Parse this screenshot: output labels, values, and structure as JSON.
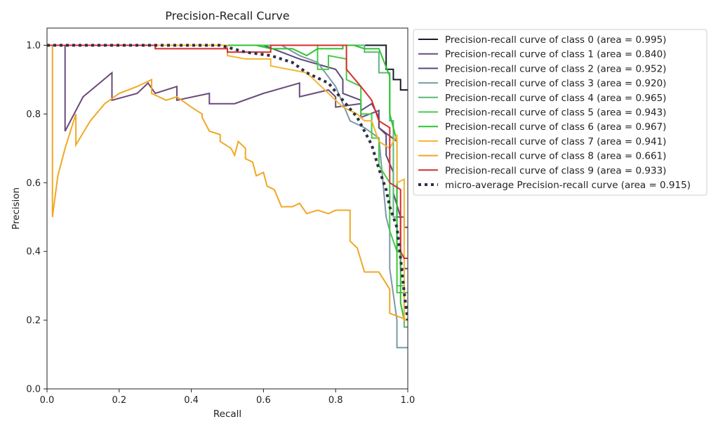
{
  "chart_data": {
    "type": "line",
    "title": "Precision-Recall Curve",
    "xlabel": "Recall",
    "ylabel": "Precision",
    "xlim": [
      0.0,
      1.0
    ],
    "ylim": [
      0.0,
      1.05
    ],
    "x_ticks": [
      "0.0",
      "0.2",
      "0.4",
      "0.6",
      "0.8",
      "1.0"
    ],
    "y_ticks": [
      "0.0",
      "0.2",
      "0.4",
      "0.6",
      "0.8",
      "1.0"
    ],
    "grid": false,
    "legend_position": "outside-right-top",
    "series": [
      {
        "name": "Precision-recall curve of class 0 (area = 0.995)",
        "color": "#1a1a2e",
        "style": "solid",
        "points": [
          [
            0.0,
            1.0
          ],
          [
            0.94,
            1.0
          ],
          [
            0.94,
            0.93
          ],
          [
            0.96,
            0.93
          ],
          [
            0.96,
            0.9
          ],
          [
            0.98,
            0.9
          ],
          [
            0.98,
            0.87
          ],
          [
            1.0,
            0.87
          ]
        ]
      },
      {
        "name": "Precision-recall curve of class 1 (area = 0.840)",
        "color": "#6a4a7a",
        "style": "solid",
        "points": [
          [
            0.0,
            1.0
          ],
          [
            0.05,
            1.0
          ],
          [
            0.05,
            0.75
          ],
          [
            0.1,
            0.85
          ],
          [
            0.18,
            0.92
          ],
          [
            0.18,
            0.84
          ],
          [
            0.25,
            0.86
          ],
          [
            0.27,
            0.88
          ],
          [
            0.28,
            0.89
          ],
          [
            0.3,
            0.86
          ],
          [
            0.36,
            0.88
          ],
          [
            0.36,
            0.84
          ],
          [
            0.45,
            0.86
          ],
          [
            0.45,
            0.83
          ],
          [
            0.52,
            0.83
          ],
          [
            0.6,
            0.86
          ],
          [
            0.7,
            0.89
          ],
          [
            0.7,
            0.85
          ],
          [
            0.78,
            0.87
          ],
          [
            0.8,
            0.85
          ],
          [
            0.8,
            0.82
          ],
          [
            0.87,
            0.83
          ],
          [
            0.87,
            0.79
          ],
          [
            0.92,
            0.81
          ],
          [
            0.92,
            0.76
          ],
          [
            0.97,
            0.72
          ],
          [
            0.97,
            0.5
          ],
          [
            0.99,
            0.5
          ],
          [
            0.99,
            0.47
          ],
          [
            1.0,
            0.47
          ]
        ]
      },
      {
        "name": "Precision-recall curve of class 2 (area = 0.952)",
        "color": "#5a4a7a",
        "style": "solid",
        "points": [
          [
            0.0,
            1.0
          ],
          [
            0.6,
            1.0
          ],
          [
            0.7,
            0.96
          ],
          [
            0.8,
            0.93
          ],
          [
            0.82,
            0.9
          ],
          [
            0.82,
            0.86
          ],
          [
            0.87,
            0.84
          ],
          [
            0.87,
            0.81
          ],
          [
            0.9,
            0.83
          ],
          [
            0.92,
            0.79
          ],
          [
            0.92,
            0.76
          ],
          [
            0.94,
            0.74
          ],
          [
            0.94,
            0.68
          ],
          [
            0.96,
            0.63
          ],
          [
            0.96,
            0.57
          ],
          [
            0.98,
            0.5
          ],
          [
            0.98,
            0.35
          ],
          [
            1.0,
            0.35
          ]
        ]
      },
      {
        "name": "Precision-recall curve of class 3 (area = 0.920)",
        "color": "#7a9aa8",
        "style": "solid",
        "points": [
          [
            0.0,
            1.0
          ],
          [
            0.65,
            1.0
          ],
          [
            0.7,
            0.97
          ],
          [
            0.75,
            0.95
          ],
          [
            0.8,
            0.88
          ],
          [
            0.84,
            0.78
          ],
          [
            0.88,
            0.76
          ],
          [
            0.92,
            0.73
          ],
          [
            0.94,
            0.5
          ],
          [
            0.95,
            0.46
          ],
          [
            0.95,
            0.35
          ],
          [
            0.97,
            0.2
          ],
          [
            0.97,
            0.12
          ],
          [
            1.0,
            0.12
          ]
        ]
      },
      {
        "name": "Precision-recall curve of class 4 (area = 0.965)",
        "color": "#5ab87a",
        "style": "solid",
        "points": [
          [
            0.0,
            1.0
          ],
          [
            0.88,
            1.0
          ],
          [
            0.88,
            0.98
          ],
          [
            0.92,
            0.98
          ],
          [
            0.92,
            0.92
          ],
          [
            0.95,
            0.92
          ],
          [
            0.95,
            0.78
          ],
          [
            0.96,
            0.78
          ],
          [
            0.96,
            0.5
          ],
          [
            0.97,
            0.5
          ],
          [
            0.97,
            0.3
          ],
          [
            0.99,
            0.3
          ],
          [
            0.99,
            0.18
          ],
          [
            1.0,
            0.18
          ]
        ]
      },
      {
        "name": "Precision-recall curve of class 5 (area = 0.943)",
        "color": "#44cc44",
        "style": "solid",
        "points": [
          [
            0.0,
            1.0
          ],
          [
            0.75,
            1.0
          ],
          [
            0.75,
            0.93
          ],
          [
            0.78,
            0.93
          ],
          [
            0.78,
            0.97
          ],
          [
            0.83,
            0.96
          ],
          [
            0.83,
            0.9
          ],
          [
            0.87,
            0.88
          ],
          [
            0.87,
            0.8
          ],
          [
            0.9,
            0.8
          ],
          [
            0.9,
            0.73
          ],
          [
            0.92,
            0.73
          ],
          [
            0.92,
            0.65
          ],
          [
            0.95,
            0.6
          ],
          [
            0.95,
            0.46
          ],
          [
            0.97,
            0.4
          ],
          [
            0.97,
            0.28
          ],
          [
            1.0,
            0.28
          ]
        ]
      },
      {
        "name": "Precision-recall curve of class 6 (area = 0.967)",
        "color": "#2ec22e",
        "style": "solid",
        "points": [
          [
            0.0,
            1.0
          ],
          [
            0.58,
            1.0
          ],
          [
            0.62,
            0.99
          ],
          [
            0.68,
            0.99
          ],
          [
            0.72,
            0.97
          ],
          [
            0.75,
            0.99
          ],
          [
            0.82,
            0.99
          ],
          [
            0.82,
            1.0
          ],
          [
            0.85,
            1.0
          ],
          [
            0.88,
            0.99
          ],
          [
            0.92,
            0.99
          ],
          [
            0.95,
            0.91
          ],
          [
            0.95,
            0.8
          ],
          [
            0.97,
            0.72
          ],
          [
            0.97,
            0.4
          ],
          [
            0.98,
            0.4
          ],
          [
            0.98,
            0.25
          ],
          [
            0.99,
            0.2
          ],
          [
            1.0,
            0.2
          ]
        ]
      },
      {
        "name": "Precision-recall curve of class 7 (area = 0.941)",
        "color": "#f5b433",
        "style": "solid",
        "points": [
          [
            0.0,
            1.0
          ],
          [
            0.5,
            1.0
          ],
          [
            0.5,
            0.97
          ],
          [
            0.55,
            0.96
          ],
          [
            0.62,
            0.96
          ],
          [
            0.62,
            0.94
          ],
          [
            0.72,
            0.92
          ],
          [
            0.8,
            0.84
          ],
          [
            0.82,
            0.82
          ],
          [
            0.86,
            0.8
          ],
          [
            0.88,
            0.78
          ],
          [
            0.9,
            0.78
          ],
          [
            0.92,
            0.72
          ],
          [
            0.95,
            0.7
          ],
          [
            0.97,
            0.74
          ],
          [
            0.97,
            0.6
          ],
          [
            0.99,
            0.61
          ],
          [
            0.99,
            0.2
          ],
          [
            1.0,
            0.2
          ]
        ]
      },
      {
        "name": "Precision-recall curve of class 8 (area = 0.661)",
        "color": "#f0a825",
        "style": "solid",
        "points": [
          [
            0.0,
            1.0
          ],
          [
            0.015,
            1.0
          ],
          [
            0.015,
            0.5
          ],
          [
            0.03,
            0.62
          ],
          [
            0.05,
            0.7
          ],
          [
            0.08,
            0.8
          ],
          [
            0.08,
            0.71
          ],
          [
            0.12,
            0.78
          ],
          [
            0.16,
            0.83
          ],
          [
            0.2,
            0.86
          ],
          [
            0.25,
            0.88
          ],
          [
            0.29,
            0.9
          ],
          [
            0.29,
            0.86
          ],
          [
            0.33,
            0.84
          ],
          [
            0.36,
            0.85
          ],
          [
            0.4,
            0.82
          ],
          [
            0.43,
            0.8
          ],
          [
            0.43,
            0.79
          ],
          [
            0.45,
            0.75
          ],
          [
            0.48,
            0.74
          ],
          [
            0.48,
            0.72
          ],
          [
            0.51,
            0.7
          ],
          [
            0.52,
            0.68
          ],
          [
            0.53,
            0.72
          ],
          [
            0.55,
            0.7
          ],
          [
            0.55,
            0.67
          ],
          [
            0.57,
            0.66
          ],
          [
            0.58,
            0.62
          ],
          [
            0.6,
            0.63
          ],
          [
            0.61,
            0.59
          ],
          [
            0.63,
            0.58
          ],
          [
            0.65,
            0.53
          ],
          [
            0.68,
            0.53
          ],
          [
            0.7,
            0.54
          ],
          [
            0.72,
            0.51
          ],
          [
            0.75,
            0.52
          ],
          [
            0.78,
            0.51
          ],
          [
            0.8,
            0.52
          ],
          [
            0.84,
            0.52
          ],
          [
            0.84,
            0.43
          ],
          [
            0.86,
            0.41
          ],
          [
            0.88,
            0.34
          ],
          [
            0.92,
            0.34
          ],
          [
            0.95,
            0.29
          ],
          [
            0.95,
            0.22
          ],
          [
            1.0,
            0.2
          ]
        ]
      },
      {
        "name": "Precision-recall curve of class 9 (area = 0.933)",
        "color": "#d42e2e",
        "style": "solid",
        "points": [
          [
            0.0,
            1.0
          ],
          [
            0.3,
            1.0
          ],
          [
            0.3,
            0.99
          ],
          [
            0.5,
            0.99
          ],
          [
            0.5,
            0.98
          ],
          [
            0.62,
            0.98
          ],
          [
            0.62,
            1.0
          ],
          [
            0.83,
            1.0
          ],
          [
            0.83,
            0.93
          ],
          [
            0.87,
            0.88
          ],
          [
            0.9,
            0.84
          ],
          [
            0.92,
            0.78
          ],
          [
            0.95,
            0.76
          ],
          [
            0.95,
            0.6
          ],
          [
            0.98,
            0.58
          ],
          [
            0.98,
            0.4
          ],
          [
            0.99,
            0.38
          ],
          [
            1.0,
            0.38
          ]
        ]
      },
      {
        "name": "micro-average Precision-recall curve (area = 0.915)",
        "color": "#2e2e48",
        "style": "dotted",
        "points": [
          [
            0.0,
            1.0
          ],
          [
            0.48,
            1.0
          ],
          [
            0.55,
            0.98
          ],
          [
            0.62,
            0.97
          ],
          [
            0.68,
            0.95
          ],
          [
            0.72,
            0.92
          ],
          [
            0.78,
            0.89
          ],
          [
            0.82,
            0.84
          ],
          [
            0.86,
            0.79
          ],
          [
            0.9,
            0.71
          ],
          [
            0.92,
            0.64
          ],
          [
            0.94,
            0.58
          ],
          [
            0.95,
            0.53
          ],
          [
            0.97,
            0.47
          ],
          [
            0.98,
            0.38
          ],
          [
            0.99,
            0.28
          ],
          [
            1.0,
            0.2
          ]
        ]
      }
    ]
  }
}
